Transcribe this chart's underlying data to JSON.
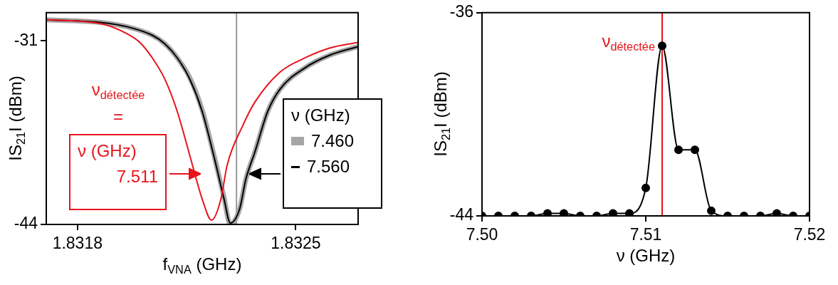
{
  "chart_data": [
    {
      "type": "line",
      "xlabel": "f$_{VNA}$ (GHz)",
      "ylabel": "IS$_{21}$I (dBm)",
      "xlim": [
        1.8317,
        1.8327
      ],
      "xticks": [
        1.8318,
        1.8325
      ],
      "ylim": [
        -44,
        -29
      ],
      "yticks": [
        -31,
        -44
      ],
      "grid": false,
      "legend": "right",
      "legend_title": "ν (GHz)",
      "annotations": [
        "ν$_{détectée}$",
        "="
      ],
      "ref_lines": [
        {
          "axis": "x",
          "value": 1.83231,
          "color": "#999999"
        }
      ],
      "series": [
        {
          "name": "7.460",
          "color": "#a6a6a6",
          "x": [
            1.8317,
            1.83188,
            1.83196,
            1.83204,
            1.83208,
            1.83212,
            1.83216,
            1.8322,
            1.83224,
            1.83227,
            1.83229,
            1.83232,
            1.83234,
            1.83237,
            1.83241,
            1.83245,
            1.83253,
            1.83261,
            1.8327
          ],
          "values": [
            -29.5,
            -29.7,
            -30,
            -30.6,
            -31.2,
            -32.2,
            -33.6,
            -35.9,
            -39.3,
            -42.1,
            -44,
            -42.9,
            -40.8,
            -38.8,
            -36,
            -34.4,
            -32.9,
            -32,
            -31.4
          ]
        },
        {
          "name": "7.560",
          "color": "#000000",
          "x": [
            1.8317,
            1.83188,
            1.83196,
            1.83204,
            1.83208,
            1.83212,
            1.83216,
            1.8322,
            1.83224,
            1.83227,
            1.83229,
            1.83232,
            1.83234,
            1.83237,
            1.83241,
            1.83245,
            1.83253,
            1.83261,
            1.8327
          ],
          "values": [
            -29.5,
            -29.7,
            -30,
            -30.6,
            -31.2,
            -32.2,
            -33.7,
            -36,
            -39.4,
            -42.2,
            -43.9,
            -42.9,
            -40.8,
            -38.8,
            -36,
            -34.4,
            -32.9,
            -32,
            -31.4
          ]
        },
        {
          "name": "7.511",
          "color": "#e8141c",
          "x": [
            1.8317,
            1.83188,
            1.83196,
            1.832,
            1.83204,
            1.83208,
            1.83212,
            1.83216,
            1.8322,
            1.83223,
            1.83226,
            1.83228,
            1.83233,
            1.83237,
            1.83245,
            1.83253,
            1.83261,
            1.8327
          ],
          "values": [
            -29.5,
            -29.8,
            -30.5,
            -31.1,
            -32.2,
            -33.7,
            -36,
            -39.1,
            -42.2,
            -43.7,
            -42.2,
            -39.8,
            -37,
            -35.3,
            -33.2,
            -32.2,
            -31.5,
            -31.1
          ]
        }
      ]
    },
    {
      "type": "line",
      "xlabel": "ν (GHz)",
      "ylabel": "IS$_{21}$I (dBm)",
      "xlim": [
        7.5,
        7.52
      ],
      "xticks": [
        {
          "value": 7.5,
          "label": "7.50"
        },
        7.51,
        7.52
      ],
      "ylim": [
        -44,
        -36
      ],
      "yticks": [
        -36,
        -44
      ],
      "grid": false,
      "legend": false,
      "marker": "circle",
      "ref_lines": [
        {
          "axis": "x",
          "value": 7.511,
          "label": "ν$_{détectée}$",
          "color": "#e8141c"
        }
      ],
      "x": [
        7.5,
        7.501,
        7.502,
        7.503,
        7.504,
        7.505,
        7.506,
        7.507,
        7.508,
        7.509,
        7.51,
        7.511,
        7.512,
        7.513,
        7.514,
        7.515,
        7.516,
        7.517,
        7.518,
        7.519,
        7.52
      ],
      "series": [
        {
          "color": "#000000",
          "values": [
            -44,
            -44,
            -44,
            -44,
            -43.9,
            -43.9,
            -44,
            -44,
            -43.9,
            -43.9,
            -42.9,
            -37.3,
            -41.4,
            -41.4,
            -43.8,
            -44,
            -44,
            -44,
            -43.9,
            -44,
            -44
          ]
        }
      ]
    }
  ]
}
